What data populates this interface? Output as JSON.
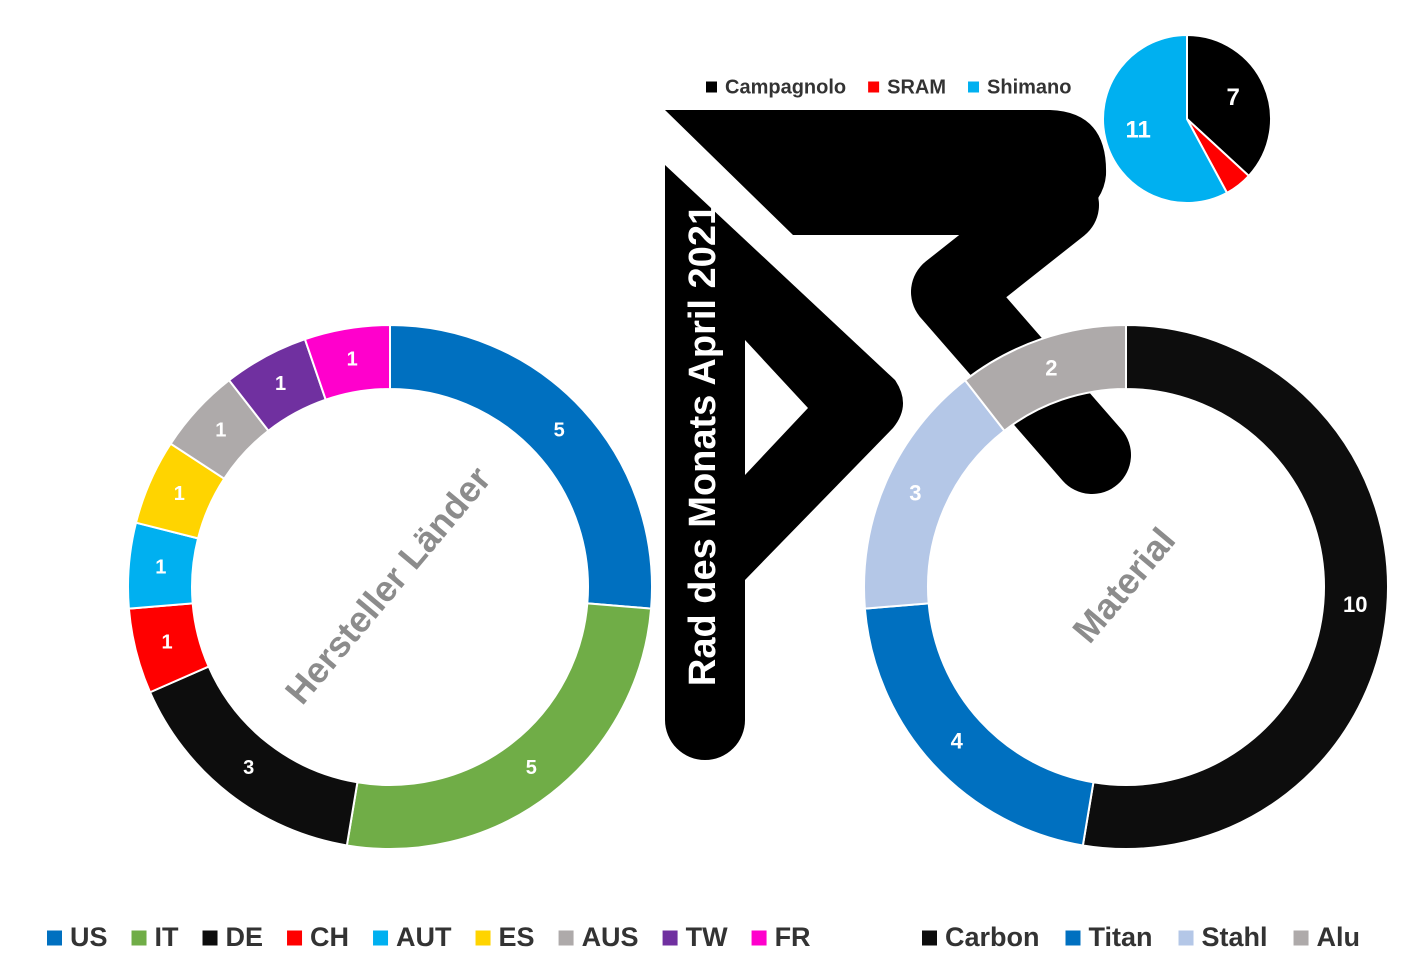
{
  "title": "Rad des Monats April 2021",
  "chart_data": [
    {
      "type": "donut",
      "center_label": "Hersteller Länder",
      "categories": [
        "US",
        "IT",
        "DE",
        "CH",
        "AUT",
        "ES",
        "AUS",
        "TW",
        "FR"
      ],
      "values": [
        5,
        5,
        3,
        1,
        1,
        1,
        1,
        1,
        1
      ],
      "colors": [
        "#0070c0",
        "#70ad47",
        "#0d0d0d",
        "#ff0000",
        "#00b0f0",
        "#ffd400",
        "#aeaaaa",
        "#7030a0",
        "#ff00cc"
      ]
    },
    {
      "type": "donut",
      "center_label": "Material",
      "categories": [
        "Carbon",
        "Titan",
        "Stahl",
        "Alu"
      ],
      "values": [
        10,
        4,
        3,
        2
      ],
      "colors": [
        "#0d0d0d",
        "#0070c0",
        "#b4c7e7",
        "#aeaaaa"
      ]
    },
    {
      "type": "pie",
      "categories": [
        "Campagnolo",
        "SRAM",
        "Shimano"
      ],
      "values": [
        7,
        1,
        11
      ],
      "value_labels": [
        "7",
        null,
        "11"
      ],
      "colors": [
        "#000000",
        "#ff0000",
        "#00b0f0"
      ]
    }
  ]
}
